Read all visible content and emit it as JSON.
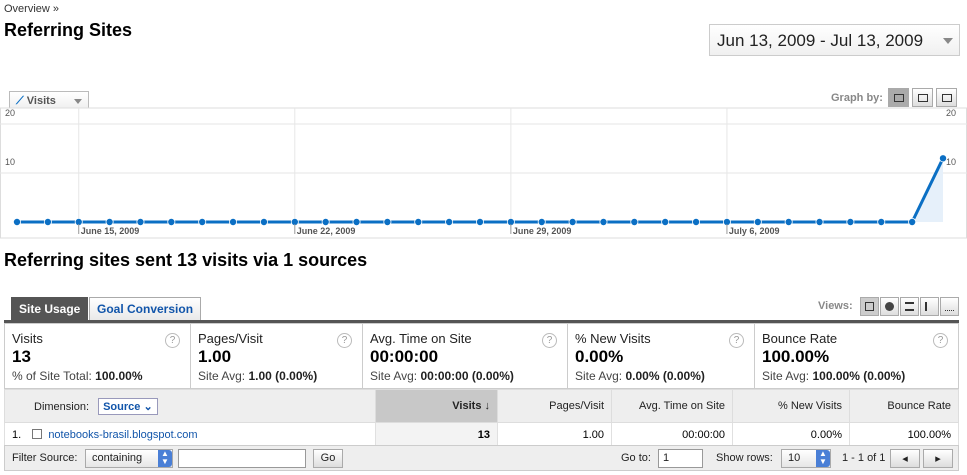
{
  "breadcrumb": "Overview »",
  "page_title": "Referring Sites",
  "date_range": "Jun 13, 2009 - Jul 13, 2009",
  "metric_select": "Visits",
  "graph_by_label": "Graph by:",
  "section_title": "Referring sites sent 13 visits via 1 sources",
  "tabs": [
    {
      "label": "Site Usage"
    },
    {
      "label": "Goal Conversion"
    }
  ],
  "views_label": "Views:",
  "summary": [
    {
      "label": "Visits",
      "value": "13",
      "sub_prefix": "% of Site Total: ",
      "sub_value": "100.00%"
    },
    {
      "label": "Pages/Visit",
      "value": "1.00",
      "sub_prefix": "Site Avg: ",
      "sub_value": "1.00 (0.00%)"
    },
    {
      "label": "Avg. Time on Site",
      "value": "00:00:00",
      "sub_prefix": "Site Avg: ",
      "sub_value": "00:00:00 (0.00%)"
    },
    {
      "label": "% New Visits",
      "value": "0.00%",
      "sub_prefix": "Site Avg: ",
      "sub_value": "0.00% (0.00%)"
    },
    {
      "label": "Bounce Rate",
      "value": "100.00%",
      "sub_prefix": "Site Avg: ",
      "sub_value": "100.00% (0.00%)"
    }
  ],
  "table": {
    "dimension_label": "Dimension:",
    "dimension_value": "Source",
    "columns": [
      "Visits",
      "Pages/Visit",
      "Avg. Time on Site",
      "% New Visits",
      "Bounce Rate"
    ],
    "rows": [
      {
        "index": "1.",
        "source": "notebooks-brasil.blogspot.com",
        "visits": "13",
        "pages": "1.00",
        "time": "00:00:00",
        "new": "0.00%",
        "bounce": "100.00%"
      }
    ]
  },
  "footer": {
    "filter_label": "Filter Source:",
    "filter_mode": "containing",
    "go_label": "Go",
    "goto_label": "Go to:",
    "goto_value": "1",
    "show_rows_label": "Show rows:",
    "show_rows_value": "10",
    "range": "1 - 1 of 1"
  },
  "chart_data": {
    "type": "area",
    "series": [
      {
        "name": "Visits",
        "values": [
          0,
          0,
          0,
          0,
          0,
          0,
          0,
          0,
          0,
          0,
          0,
          0,
          0,
          0,
          0,
          0,
          0,
          0,
          0,
          0,
          0,
          0,
          0,
          0,
          0,
          0,
          0,
          0,
          0,
          0,
          13
        ]
      }
    ],
    "x_labels": [
      "June 15, 2009",
      "June 22, 2009",
      "June 29, 2009",
      "July 6, 2009"
    ],
    "y_ticks_left": [
      "20",
      "10"
    ],
    "y_ticks_right": [
      "20",
      "10"
    ],
    "ylim": [
      0,
      20
    ],
    "color": "#0b6fc4",
    "fill": "#e6f0fa"
  }
}
